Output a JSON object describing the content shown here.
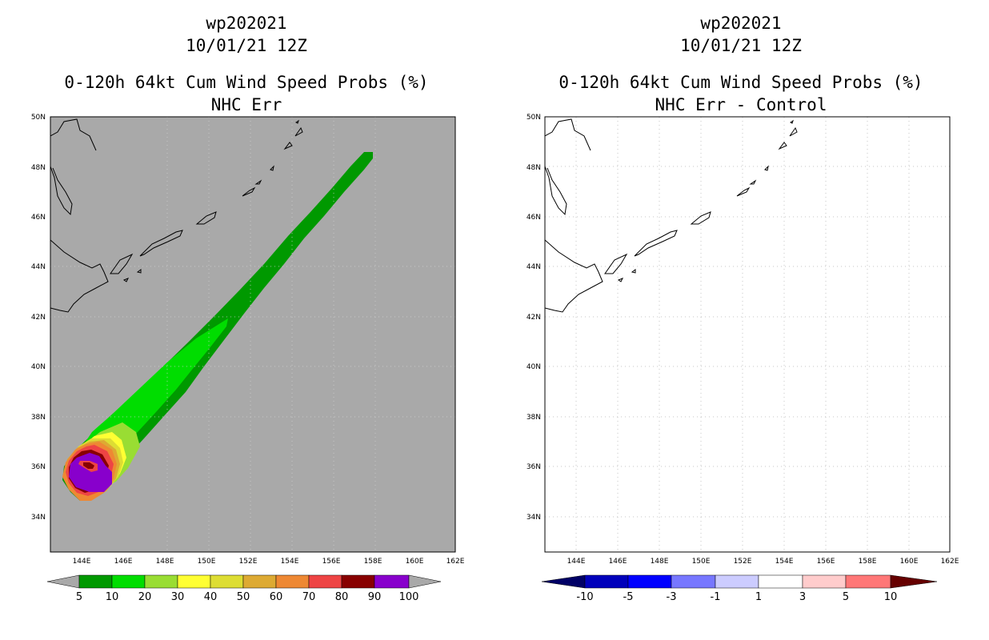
{
  "chart_data": [
    {
      "type": "contour-map",
      "title_lines": [
        "wp202021",
        "10/01/21 12Z",
        "0-120h 64kt Cum Wind Speed Probs (%)",
        "NHC Err"
      ],
      "lon_ticks": [
        "144E",
        "146E",
        "148E",
        "150E",
        "152E",
        "154E",
        "156E",
        "158E",
        "160E",
        "162E"
      ],
      "lat_ticks": [
        "50N",
        "48N",
        "46N",
        "44N",
        "42N",
        "40N",
        "38N",
        "36N",
        "34N"
      ],
      "xlim": [
        142.5,
        162
      ],
      "ylim": [
        32.5,
        50
      ],
      "background_color": "#a9a9a9",
      "contour_levels": [
        5,
        10,
        20,
        30,
        40,
        50,
        60,
        70,
        80,
        90,
        100
      ],
      "colorbar_labels": [
        "5",
        "10",
        "20",
        "30",
        "40",
        "50",
        "60",
        "70",
        "80",
        "90",
        "100"
      ],
      "colorbar_colors": [
        "#009900",
        "#00dd00",
        "#99dd33",
        "#ffff33",
        "#dddd33",
        "#ddaa33",
        "#ee8833",
        "#ee4444",
        "#880000",
        "#8800cc"
      ],
      "storm_track_center": {
        "lon": 144.6,
        "lat": 35.9
      },
      "probability_swath_extent": {
        "lon_min": 143.3,
        "lon_max": 158.1,
        "lat_min": 34.6,
        "lat_max": 48.6
      }
    },
    {
      "type": "contour-map",
      "title_lines": [
        "wp202021",
        "10/01/21 12Z",
        "0-120h 64kt Cum Wind Speed Probs (%)",
        "NHC Err - Control"
      ],
      "lon_ticks": [
        "144E",
        "146E",
        "148E",
        "150E",
        "152E",
        "154E",
        "156E",
        "158E",
        "160E",
        "162E"
      ],
      "lat_ticks": [
        "50N",
        "48N",
        "46N",
        "44N",
        "42N",
        "40N",
        "38N",
        "36N",
        "34N"
      ],
      "xlim": [
        142.5,
        162
      ],
      "ylim": [
        32.5,
        50
      ],
      "background_color": "#ffffff",
      "contour_levels": [
        -10,
        -5,
        -3,
        -1,
        1,
        3,
        5,
        10
      ],
      "colorbar_labels": [
        "-10",
        "-5",
        "-3",
        "-1",
        "1",
        "3",
        "5",
        "10"
      ],
      "colorbar_colors": [
        "#0000bb",
        "#0000ff",
        "#7777ff",
        "#ccccff",
        "#ffffff",
        "#ffcccc",
        "#ff7777",
        "#ff0000"
      ],
      "grid": true
    }
  ]
}
